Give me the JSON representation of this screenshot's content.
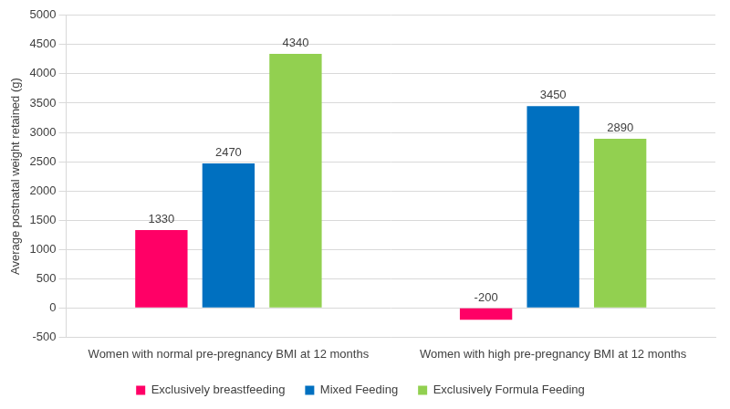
{
  "chart_data": {
    "type": "bar",
    "y_label": "Average postnatal weight retained (g)",
    "categories": [
      "Women with normal pre-pregnancy BMI at 12 months",
      "Women with high pre-pregnancy BMI at 12 months"
    ],
    "series": [
      {
        "name": "Exclusively breastfeeding",
        "color": "#ff0066",
        "values": [
          1330,
          -200
        ]
      },
      {
        "name": "Mixed Feeding",
        "color": "#0070c0",
        "values": [
          2470,
          3450
        ]
      },
      {
        "name": "Exclusively Formula Feeding",
        "color": "#92d050",
        "values": [
          4340,
          2890
        ]
      }
    ],
    "ylim": [
      -500,
      5000
    ],
    "yticks": [
      -500,
      0,
      500,
      1000,
      1500,
      2000,
      2500,
      3000,
      3500,
      4000,
      4500,
      5000
    ],
    "grid": true,
    "legend": "bottom",
    "data_labels": true
  }
}
